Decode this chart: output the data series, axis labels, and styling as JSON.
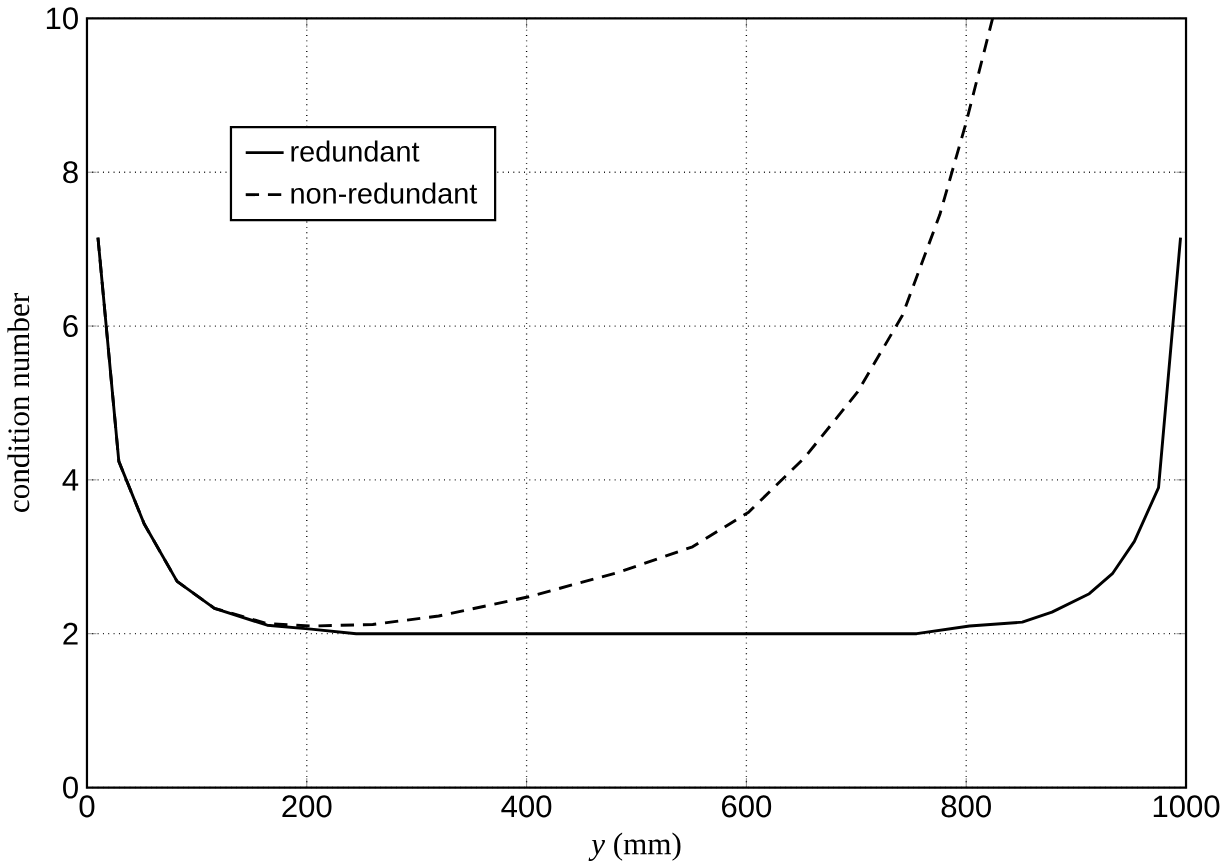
{
  "chart_data": {
    "type": "line",
    "xlabel": "*y* (mm)",
    "ylabel": "condition number",
    "xlim": [
      0,
      1000
    ],
    "ylim": [
      0,
      10
    ],
    "xticks": [
      0,
      200,
      400,
      600,
      800,
      1000
    ],
    "yticks": [
      0,
      2,
      4,
      6,
      8,
      10
    ],
    "grid": true,
    "legend": "top left",
    "marker": "none",
    "series": [
      {
        "name": "redundant",
        "color": "#000000",
        "line_style": "solid",
        "x": [
          10,
          29,
          52,
          82,
          116,
          164,
          204,
          245,
          400,
          600,
          755,
          803,
          851,
          878,
          912,
          933,
          953,
          975,
          995
        ],
        "values": [
          7.15,
          4.24,
          3.43,
          2.68,
          2.33,
          2.11,
          2.06,
          2.0,
          2.0,
          2.0,
          2.0,
          2.1,
          2.15,
          2.28,
          2.52,
          2.78,
          3.2,
          3.9,
          7.15
        ]
      },
      {
        "name": "non-redundant",
        "color": "#000000",
        "line_style": "dashed",
        "x": [
          10,
          29,
          52,
          82,
          116,
          164,
          204,
          260,
          320,
          402,
          484,
          551,
          602,
          653,
          701,
          742,
          776,
          800,
          824
        ],
        "values": [
          7.15,
          4.24,
          3.43,
          2.68,
          2.33,
          2.13,
          2.1,
          2.12,
          2.23,
          2.48,
          2.8,
          3.13,
          3.58,
          4.29,
          5.14,
          6.14,
          7.45,
          8.65,
          10.0
        ]
      }
    ]
  }
}
